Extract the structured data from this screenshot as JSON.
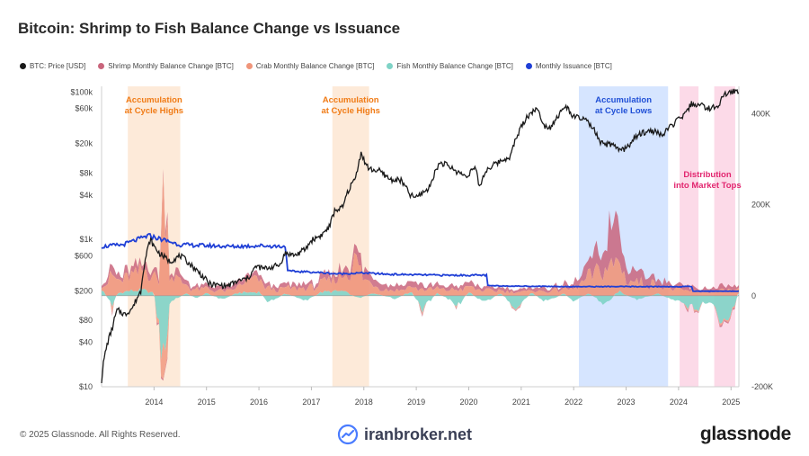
{
  "page": {
    "title": "Bitcoin: Shrimp to Fish Balance Change vs Issuance",
    "copyright": "© 2025 Glassnode. All Rights Reserved.",
    "watermark": "iranbroker.net",
    "brand": "glassnode"
  },
  "colors": {
    "price": "#1a1a1a",
    "shrimp": "#c9657c",
    "crab": "#f0957a",
    "fish": "#7fd3c6",
    "issuance": "#1f3fd6",
    "accumulation_high_band": "#fde6d2",
    "accumulation_low_band": "#cfe0ff",
    "distribution_band": "#fcd3e4",
    "orange_label": "#f07b16",
    "blue_label": "#1f4fd6",
    "pink_label": "#e2266f"
  },
  "legend": [
    {
      "label": "BTC: Price [USD]",
      "color": "#1a1a1a"
    },
    {
      "label": "Shrimp Monthly Balance Change [BTC]",
      "color": "#c9657c"
    },
    {
      "label": "Crab Monthly Balance Change [BTC]",
      "color": "#f0957a"
    },
    {
      "label": "Fish Monthly Balance Change [BTC]",
      "color": "#7fd3c6"
    },
    {
      "label": "Monthly Issuance [BTC]",
      "color": "#1f3fd6"
    }
  ],
  "chart_data": {
    "type": "line",
    "title": "Bitcoin: Shrimp to Fish Balance Change vs Issuance",
    "x_ticks": [
      "2014",
      "2015",
      "2016",
      "2017",
      "2018",
      "2019",
      "2020",
      "2021",
      "2022",
      "2023",
      "2024",
      "2025"
    ],
    "x_range": [
      2013.0,
      2025.15
    ],
    "y_left": {
      "scale": "log",
      "unit": "USD",
      "ticks": [
        "$10",
        "$40",
        "$80",
        "$200",
        "$600",
        "$1k",
        "$4k",
        "$8k",
        "$20k",
        "$60k",
        "$100k"
      ],
      "range": [
        10,
        120000
      ]
    },
    "y_right": {
      "scale": "linear",
      "unit": "BTC",
      "ticks": [
        "-200K",
        "0",
        "200K",
        "400K"
      ],
      "range": [
        -200000,
        460000
      ]
    },
    "series": [
      {
        "name": "BTC: Price [USD]",
        "axis": "left",
        "points": [
          [
            2013.0,
            12
          ],
          [
            2013.2,
            60
          ],
          [
            2013.3,
            110
          ],
          [
            2013.45,
            95
          ],
          [
            2013.6,
            120
          ],
          [
            2013.75,
            200
          ],
          [
            2013.85,
            600
          ],
          [
            2013.93,
            1000
          ],
          [
            2014.0,
            800
          ],
          [
            2014.1,
            650
          ],
          [
            2014.3,
            500
          ],
          [
            2014.5,
            600
          ],
          [
            2014.7,
            450
          ],
          [
            2014.9,
            330
          ],
          [
            2015.05,
            250
          ],
          [
            2015.2,
            240
          ],
          [
            2015.4,
            235
          ],
          [
            2015.6,
            270
          ],
          [
            2015.8,
            300
          ],
          [
            2015.95,
            430
          ],
          [
            2016.1,
            400
          ],
          [
            2016.4,
            450
          ],
          [
            2016.5,
            650
          ],
          [
            2016.7,
            610
          ],
          [
            2016.9,
            750
          ],
          [
            2017.0,
            970
          ],
          [
            2017.2,
            1150
          ],
          [
            2017.35,
            1500
          ],
          [
            2017.45,
            2500
          ],
          [
            2017.6,
            2700
          ],
          [
            2017.7,
            4500
          ],
          [
            2017.85,
            7000
          ],
          [
            2017.95,
            15000
          ],
          [
            2018.02,
            11000
          ],
          [
            2018.1,
            9000
          ],
          [
            2018.3,
            8500
          ],
          [
            2018.5,
            6500
          ],
          [
            2018.7,
            6400
          ],
          [
            2018.88,
            4000
          ],
          [
            2019.0,
            3700
          ],
          [
            2019.25,
            5000
          ],
          [
            2019.45,
            11000
          ],
          [
            2019.55,
            10500
          ],
          [
            2019.75,
            8500
          ],
          [
            2019.95,
            7200
          ],
          [
            2020.12,
            9500
          ],
          [
            2020.2,
            5000
          ],
          [
            2020.35,
            9000
          ],
          [
            2020.55,
            11000
          ],
          [
            2020.8,
            13500
          ],
          [
            2020.95,
            28000
          ],
          [
            2021.1,
            45000
          ],
          [
            2021.28,
            60000
          ],
          [
            2021.45,
            35000
          ],
          [
            2021.55,
            33000
          ],
          [
            2021.7,
            47000
          ],
          [
            2021.85,
            64000
          ],
          [
            2022.0,
            46000
          ],
          [
            2022.2,
            43000
          ],
          [
            2022.4,
            30000
          ],
          [
            2022.5,
            20000
          ],
          [
            2022.7,
            19500
          ],
          [
            2022.87,
            16500
          ],
          [
            2023.0,
            17000
          ],
          [
            2023.15,
            23000
          ],
          [
            2023.3,
            28000
          ],
          [
            2023.5,
            30000
          ],
          [
            2023.7,
            26000
          ],
          [
            2023.9,
            37000
          ],
          [
            2024.0,
            42000
          ],
          [
            2024.15,
            52000
          ],
          [
            2024.25,
            70000
          ],
          [
            2024.45,
            65000
          ],
          [
            2024.6,
            60000
          ],
          [
            2024.75,
            63000
          ],
          [
            2024.85,
            90000
          ],
          [
            2024.95,
            96000
          ],
          [
            2025.05,
            104000
          ],
          [
            2025.15,
            97000
          ]
        ]
      },
      {
        "name": "Monthly Issuance [BTC]",
        "axis": "right",
        "points": [
          [
            2013.0,
            108000
          ],
          [
            2013.4,
            112000
          ],
          [
            2013.9,
            132000
          ],
          [
            2014.5,
            112000
          ],
          [
            2015.0,
            110000
          ],
          [
            2015.5,
            108000
          ],
          [
            2016.0,
            110000
          ],
          [
            2016.52,
            108000
          ],
          [
            2016.53,
            54000
          ],
          [
            2017.0,
            52000
          ],
          [
            2017.5,
            48000
          ],
          [
            2018.0,
            50000
          ],
          [
            2018.5,
            47000
          ],
          [
            2019.0,
            46000
          ],
          [
            2019.5,
            45000
          ],
          [
            2020.35,
            45000
          ],
          [
            2020.36,
            22000
          ],
          [
            2021.0,
            21000
          ],
          [
            2022.0,
            20000
          ],
          [
            2023.0,
            20000
          ],
          [
            2024.25,
            20000
          ],
          [
            2024.27,
            10000
          ],
          [
            2025.15,
            10000
          ]
        ]
      }
    ],
    "stacked_areas": [
      {
        "name": "Shrimp Monthly Balance Change [BTC]",
        "axis": "right",
        "points": [
          [
            2013.0,
            6000
          ],
          [
            2013.2,
            15000
          ],
          [
            2013.4,
            12000
          ],
          [
            2013.6,
            20000
          ],
          [
            2013.8,
            18000
          ],
          [
            2014.0,
            15000
          ],
          [
            2014.3,
            12000
          ],
          [
            2014.5,
            14000
          ],
          [
            2014.7,
            10000
          ],
          [
            2015.0,
            8000
          ],
          [
            2015.5,
            9000
          ],
          [
            2016.0,
            10000
          ],
          [
            2016.5,
            8000
          ],
          [
            2017.0,
            10000
          ],
          [
            2017.6,
            18000
          ],
          [
            2017.9,
            25000
          ],
          [
            2018.2,
            12000
          ],
          [
            2018.6,
            9000
          ],
          [
            2019.0,
            10000
          ],
          [
            2019.5,
            8000
          ],
          [
            2020.0,
            10000
          ],
          [
            2020.5,
            7000
          ],
          [
            2021.0,
            6000
          ],
          [
            2021.5,
            8000
          ],
          [
            2022.0,
            10000
          ],
          [
            2022.5,
            40000
          ],
          [
            2022.85,
            120000
          ],
          [
            2023.0,
            30000
          ],
          [
            2023.5,
            20000
          ],
          [
            2024.0,
            10000
          ],
          [
            2024.5,
            8000
          ],
          [
            2025.0,
            10000
          ],
          [
            2025.15,
            8000
          ]
        ]
      },
      {
        "name": "Crab Monthly Balance Change [BTC]",
        "axis": "right",
        "points": [
          [
            2013.0,
            10000
          ],
          [
            2013.2,
            45000
          ],
          [
            2013.35,
            25000
          ],
          [
            2013.6,
            35000
          ],
          [
            2013.9,
            45000
          ],
          [
            2014.1,
            35000
          ],
          [
            2014.2,
            270000
          ],
          [
            2014.3,
            50000
          ],
          [
            2014.5,
            30000
          ],
          [
            2014.7,
            15000
          ],
          [
            2015.0,
            12000
          ],
          [
            2015.5,
            10000
          ],
          [
            2015.9,
            30000
          ],
          [
            2016.3,
            12000
          ],
          [
            2016.6,
            15000
          ],
          [
            2017.0,
            18000
          ],
          [
            2017.5,
            25000
          ],
          [
            2017.7,
            45000
          ],
          [
            2017.85,
            80000
          ],
          [
            2018.0,
            35000
          ],
          [
            2018.3,
            15000
          ],
          [
            2018.6,
            12000
          ],
          [
            2019.0,
            15000
          ],
          [
            2019.5,
            12000
          ],
          [
            2020.0,
            15000
          ],
          [
            2020.5,
            10000
          ],
          [
            2021.0,
            8000
          ],
          [
            2021.5,
            10000
          ],
          [
            2022.0,
            15000
          ],
          [
            2022.5,
            55000
          ],
          [
            2022.85,
            70000
          ],
          [
            2023.0,
            35000
          ],
          [
            2023.5,
            25000
          ],
          [
            2024.0,
            12000
          ],
          [
            2024.5,
            8000
          ],
          [
            2025.0,
            12000
          ],
          [
            2025.15,
            10000
          ]
        ]
      },
      {
        "name": "Fish Monthly Balance Change [BTC]",
        "axis": "right",
        "points": [
          [
            2013.0,
            15000
          ],
          [
            2013.2,
            -20000
          ],
          [
            2013.3,
            5000
          ],
          [
            2013.5,
            10000
          ],
          [
            2013.8,
            12000
          ],
          [
            2014.0,
            5000
          ],
          [
            2014.2,
            -160000
          ],
          [
            2014.3,
            -15000
          ],
          [
            2014.6,
            5000
          ],
          [
            2014.8,
            -5000
          ],
          [
            2015.0,
            5000
          ],
          [
            2015.3,
            -8000
          ],
          [
            2015.6,
            6000
          ],
          [
            2016.0,
            8000
          ],
          [
            2016.2,
            -15000
          ],
          [
            2016.5,
            5000
          ],
          [
            2016.9,
            -10000
          ],
          [
            2017.2,
            8000
          ],
          [
            2017.6,
            10000
          ],
          [
            2017.9,
            -5000
          ],
          [
            2018.2,
            6000
          ],
          [
            2018.6,
            -8000
          ],
          [
            2018.9,
            10000
          ],
          [
            2019.1,
            -30000
          ],
          [
            2019.4,
            6000
          ],
          [
            2019.8,
            -20000
          ],
          [
            2020.0,
            8000
          ],
          [
            2020.3,
            -15000
          ],
          [
            2020.6,
            5000
          ],
          [
            2020.9,
            -25000
          ],
          [
            2021.2,
            6000
          ],
          [
            2021.5,
            -15000
          ],
          [
            2021.8,
            5000
          ],
          [
            2022.0,
            -10000
          ],
          [
            2022.3,
            5000
          ],
          [
            2022.6,
            -20000
          ],
          [
            2022.85,
            10000
          ],
          [
            2023.2,
            -10000
          ],
          [
            2023.6,
            5000
          ],
          [
            2024.0,
            -15000
          ],
          [
            2024.3,
            -30000
          ],
          [
            2024.6,
            -10000
          ],
          [
            2024.9,
            -70000
          ],
          [
            2025.15,
            5000
          ]
        ]
      }
    ],
    "bands": [
      {
        "label": "Accumulation at Cycle Highs",
        "x": [
          2013.5,
          2014.5
        ],
        "color": "#fde6d2",
        "text_color": "#f07b16",
        "label_position": "top"
      },
      {
        "label": "Accumulation at Cycle Highs",
        "x": [
          2017.4,
          2018.1
        ],
        "color": "#fde6d2",
        "text_color": "#f07b16",
        "label_position": "top"
      },
      {
        "label": "Accumulation at Cycle Lows",
        "x": [
          2022.1,
          2023.8
        ],
        "color": "#cfe0ff",
        "text_color": "#1f4fd6",
        "label_position": "top"
      },
      {
        "label": "Distribution into Market Tops",
        "x": [
          2024.02,
          2024.38
        ],
        "color": "#fcd3e4",
        "text_color": "#e2266f",
        "label_position": "middle"
      },
      {
        "label": "",
        "x": [
          2024.68,
          2025.08
        ],
        "color": "#fcd3e4",
        "text_color": "#e2266f",
        "label_position": "middle"
      }
    ],
    "annotations": [
      {
        "lines": [
          "Accumulation",
          "at Cycle Highs"
        ],
        "x": 2014.0,
        "at": "top",
        "color": "#f07b16"
      },
      {
        "lines": [
          "Accumulation",
          "at Cycle Highs"
        ],
        "x": 2017.75,
        "at": "top",
        "color": "#f07b16"
      },
      {
        "lines": [
          "Accumulation",
          "at Cycle Lows"
        ],
        "x": 2022.95,
        "at": "top",
        "color": "#1f4fd6"
      },
      {
        "lines": [
          "Distribution",
          "into Market Tops"
        ],
        "x": 2024.55,
        "at": "upper-middle",
        "color": "#e2266f"
      }
    ],
    "grid": true,
    "legend_position": "top-left"
  }
}
